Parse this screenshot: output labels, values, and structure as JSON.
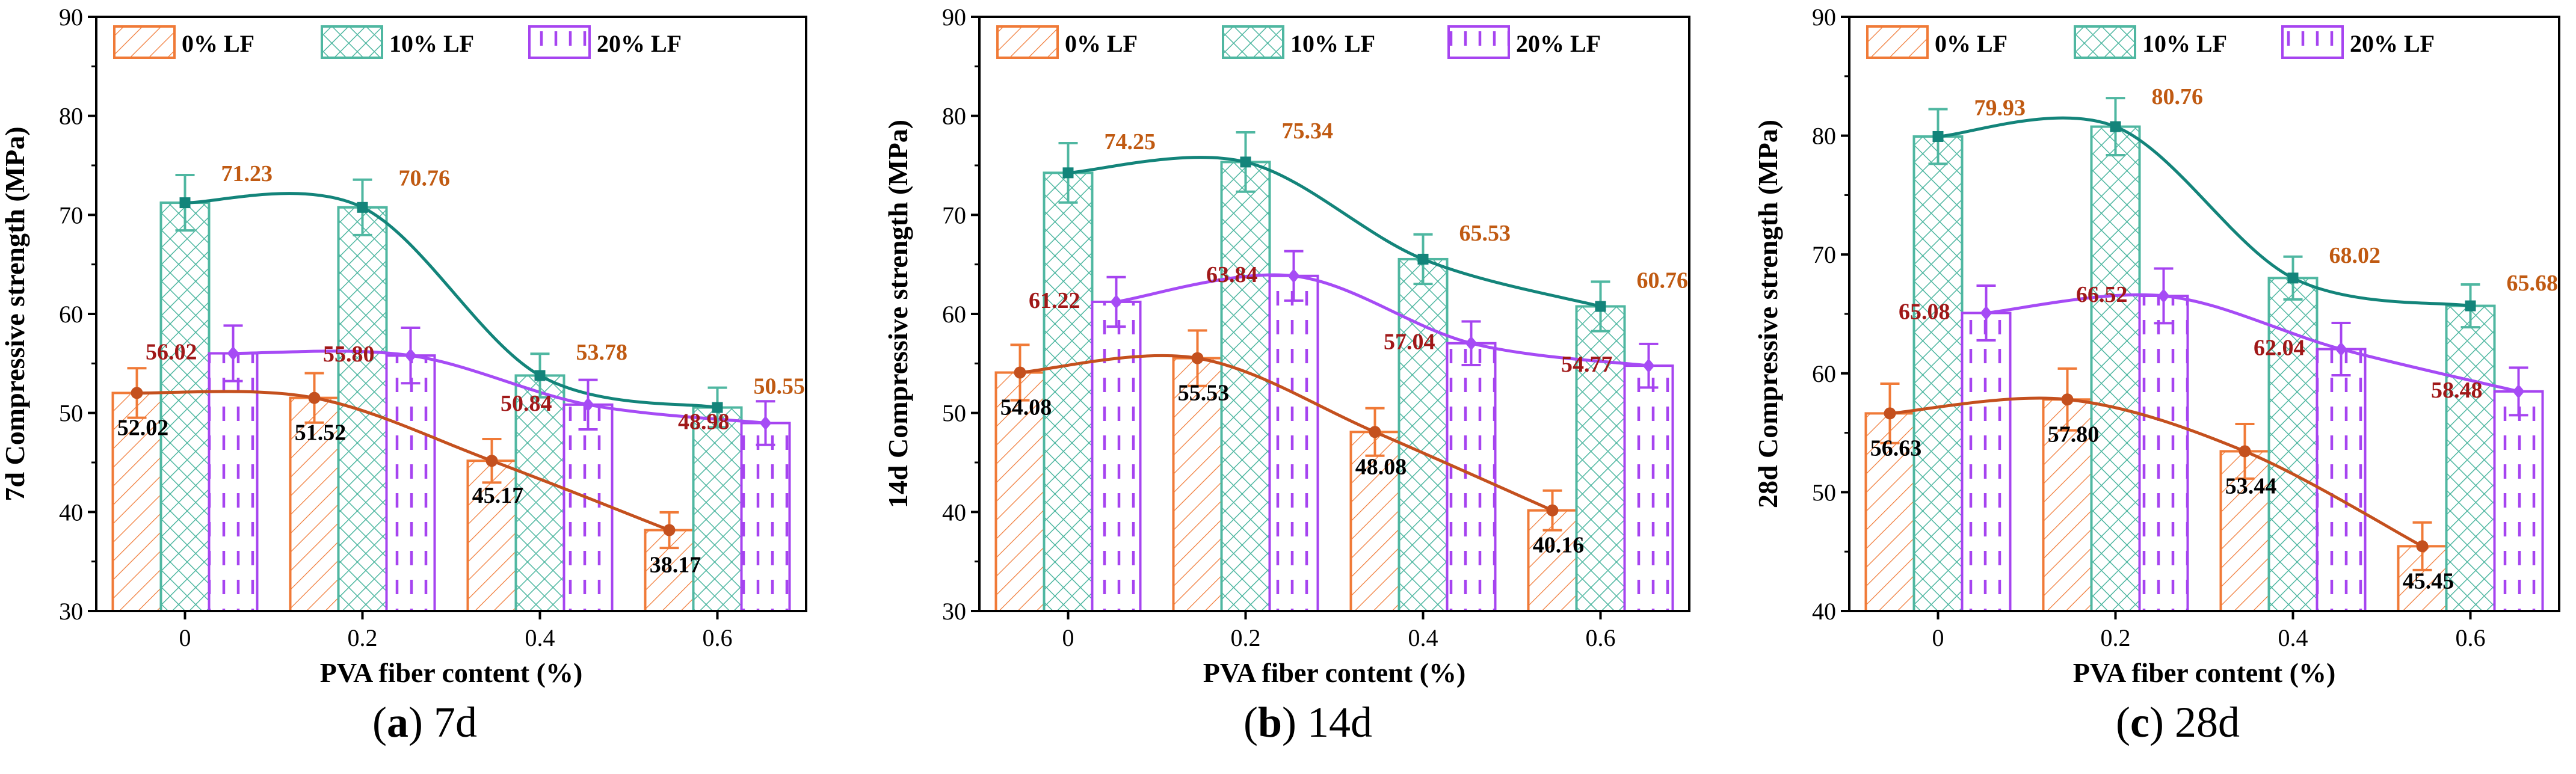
{
  "legend": [
    "0% LF",
    "10% LF",
    "20% LF"
  ],
  "captions": [
    {
      "letter": "a",
      "text": "7d"
    },
    {
      "letter": "b",
      "text": "14d"
    },
    {
      "letter": "c",
      "text": "28d"
    }
  ],
  "colors": {
    "lf0": "#F07A37",
    "lf10": "#4FB7A1",
    "lf20": "#A644F0",
    "fit0": "#C4501E",
    "fit10": "#13847A",
    "fit20": "#A64BF5",
    "label0": "#C05A12",
    "label20": "#A01818"
  },
  "chart_data": [
    {
      "type": "bar",
      "categories": [
        "0",
        "0.2",
        "0.4",
        "0.6"
      ],
      "xlabel": "PVA fiber content (%)",
      "ylabel": "7d Compressive strength (MPa)",
      "ylim": [
        30,
        90
      ],
      "yticks": [
        30,
        40,
        50,
        60,
        70,
        80,
        90
      ],
      "series": [
        {
          "name": "0% LF",
          "values": [
            52.02,
            51.52,
            45.17,
            38.17
          ],
          "errors": [
            2.5,
            2.5,
            2.2,
            1.8
          ],
          "labels": [
            "52.02",
            "51.52",
            "45.17",
            "38.17"
          ]
        },
        {
          "name": "10% LF",
          "values": [
            71.23,
            70.76,
            53.78,
            50.55
          ],
          "errors": [
            2.8,
            2.8,
            2.2,
            2.0
          ],
          "labels": [
            "71.23",
            "70.76",
            "53.78",
            "50.55"
          ]
        },
        {
          "name": "20% LF",
          "values": [
            56.02,
            55.8,
            50.84,
            48.98
          ],
          "errors": [
            2.8,
            2.8,
            2.5,
            2.2
          ],
          "labels": [
            "56.02",
            "55.80",
            "50.84",
            "48.98"
          ]
        }
      ]
    },
    {
      "type": "bar",
      "categories": [
        "0",
        "0.2",
        "0.4",
        "0.6"
      ],
      "xlabel": "PVA fiber content (%)",
      "ylabel": "14d Compressive strength (MPa)",
      "ylim": [
        30,
        90
      ],
      "yticks": [
        30,
        40,
        50,
        60,
        70,
        80,
        90
      ],
      "series": [
        {
          "name": "0% LF",
          "values": [
            54.08,
            55.53,
            48.08,
            40.16
          ],
          "errors": [
            2.8,
            2.8,
            2.4,
            2.0
          ],
          "labels": [
            "54.08",
            "55.53",
            "48.08",
            "40.16"
          ]
        },
        {
          "name": "10% LF",
          "values": [
            74.25,
            75.34,
            65.53,
            60.76
          ],
          "errors": [
            3.0,
            3.0,
            2.5,
            2.5
          ],
          "labels": [
            "74.25",
            "75.34",
            "65.53",
            "60.76"
          ]
        },
        {
          "name": "20% LF",
          "values": [
            61.22,
            63.84,
            57.04,
            54.77
          ],
          "errors": [
            2.5,
            2.5,
            2.2,
            2.2
          ],
          "labels": [
            "61.22",
            "63.84",
            "57.04",
            "54.77"
          ]
        }
      ]
    },
    {
      "type": "bar",
      "categories": [
        "0",
        "0.2",
        "0.4",
        "0.6"
      ],
      "xlabel": "PVA fiber content (%)",
      "ylabel": "28d Compressive strength (MPa)",
      "ylim": [
        40,
        90
      ],
      "yticks": [
        40,
        50,
        60,
        70,
        80,
        90
      ],
      "series": [
        {
          "name": "0% LF",
          "values": [
            56.63,
            57.8,
            53.44,
            45.45
          ],
          "errors": [
            2.5,
            2.6,
            2.3,
            2.0
          ],
          "labels": [
            "56.63",
            "57.80",
            "53.44",
            "45.45"
          ]
        },
        {
          "name": "10% LF",
          "values": [
            79.93,
            80.76,
            68.02,
            65.68
          ],
          "errors": [
            2.3,
            2.4,
            1.8,
            1.8
          ],
          "labels": [
            "79.93",
            "80.76",
            "68.02",
            "65.68"
          ]
        },
        {
          "name": "20% LF",
          "values": [
            65.08,
            66.52,
            62.04,
            58.48
          ],
          "errors": [
            2.3,
            2.3,
            2.2,
            2.0
          ],
          "labels": [
            "65.08",
            "66.52",
            "62.04",
            "58.48"
          ]
        }
      ]
    }
  ]
}
